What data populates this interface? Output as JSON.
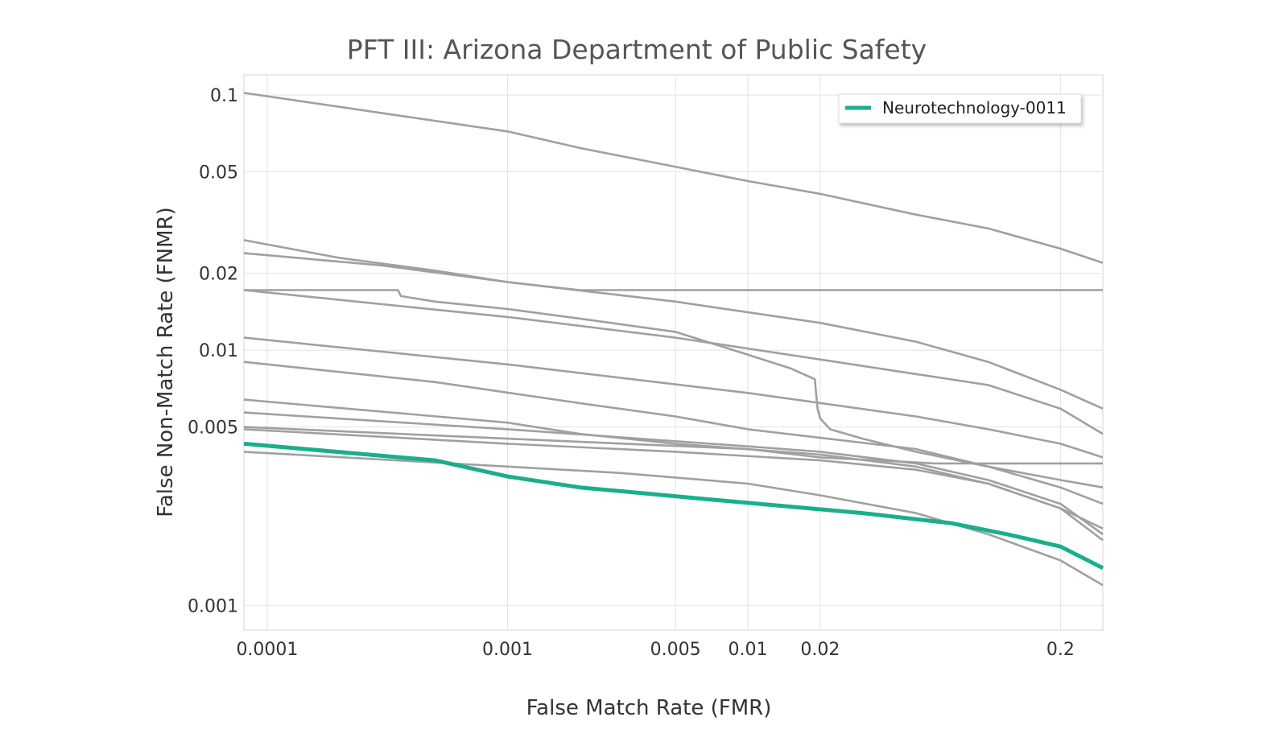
{
  "chart_data": {
    "type": "line",
    "title": "PFT III: Arizona Department of Public Safety",
    "xlabel": "False Match Rate (FMR)",
    "ylabel": "False Non-Match Rate (FNMR)",
    "xscale": "log",
    "yscale": "log",
    "xlim": [
      8e-05,
      0.3
    ],
    "ylim": [
      0.0008,
      0.12
    ],
    "grid": true,
    "legend_position": "top-right",
    "xticks": [
      {
        "value": 0.0001,
        "label": "0.0001"
      },
      {
        "value": 0.001,
        "label": "0.001"
      },
      {
        "value": 0.005,
        "label": "0.005"
      },
      {
        "value": 0.01,
        "label": "0.01"
      },
      {
        "value": 0.02,
        "label": "0.02"
      },
      {
        "value": 0.2,
        "label": "0.2"
      }
    ],
    "yticks": [
      {
        "value": 0.1,
        "label": "0.1"
      },
      {
        "value": 0.05,
        "label": "0.05"
      },
      {
        "value": 0.02,
        "label": "0.02"
      },
      {
        "value": 0.01,
        "label": "0.01"
      },
      {
        "value": 0.005,
        "label": "0.005"
      },
      {
        "value": 0.001,
        "label": "0.001"
      }
    ],
    "highlight_color": "#1aaf8b",
    "other_color": "#a0a0a0",
    "series": [
      {
        "name": "Neurotechnology-0011",
        "highlight": true,
        "x": [
          8e-05,
          0.0005,
          0.001,
          0.002,
          0.007,
          0.03,
          0.07,
          0.12,
          0.2,
          0.3
        ],
        "y": [
          0.0043,
          0.0037,
          0.0032,
          0.0029,
          0.0026,
          0.0023,
          0.0021,
          0.0019,
          0.0017,
          0.0014
        ]
      },
      {
        "name": "",
        "highlight": false,
        "x": [
          8e-05,
          0.001,
          0.002,
          0.01,
          0.02,
          0.05,
          0.1,
          0.2,
          0.3
        ],
        "y": [
          0.102,
          0.072,
          0.062,
          0.046,
          0.041,
          0.034,
          0.03,
          0.025,
          0.022
        ]
      },
      {
        "name": "",
        "highlight": false,
        "x": [
          8e-05,
          0.0002,
          0.0005,
          0.001,
          0.005,
          0.02,
          0.05,
          0.1,
          0.2,
          0.3
        ],
        "y": [
          0.027,
          0.023,
          0.0205,
          0.0185,
          0.0155,
          0.0128,
          0.0108,
          0.009,
          0.007,
          0.0059
        ]
      },
      {
        "name": "",
        "highlight": false,
        "x": [
          8e-05,
          0.0003,
          0.001,
          0.002,
          0.3
        ],
        "y": [
          0.024,
          0.0215,
          0.0185,
          0.0172,
          0.0172
        ]
      },
      {
        "name": "",
        "highlight": false,
        "x": [
          8e-05,
          0.00035,
          0.00036,
          0.0005,
          0.001,
          0.002,
          0.005,
          0.01,
          0.015,
          0.019,
          0.0195,
          0.02,
          0.022,
          0.03,
          0.05,
          0.1,
          0.2,
          0.3
        ],
        "y": [
          0.0172,
          0.0172,
          0.0163,
          0.0155,
          0.0145,
          0.0133,
          0.0118,
          0.0096,
          0.0085,
          0.0077,
          0.0059,
          0.0054,
          0.0049,
          0.0045,
          0.004,
          0.0035,
          0.0031,
          0.0029
        ]
      },
      {
        "name": "",
        "highlight": false,
        "x": [
          8e-05,
          0.001,
          0.005,
          0.02,
          0.1,
          0.2,
          0.3
        ],
        "y": [
          0.0172,
          0.0135,
          0.0112,
          0.0092,
          0.0073,
          0.0059,
          0.0047
        ]
      },
      {
        "name": "",
        "highlight": false,
        "x": [
          8e-05,
          0.001,
          0.01,
          0.05,
          0.1,
          0.2,
          0.3
        ],
        "y": [
          0.0112,
          0.0088,
          0.0068,
          0.0055,
          0.0049,
          0.0043,
          0.0038
        ]
      },
      {
        "name": "",
        "highlight": false,
        "x": [
          8e-05,
          0.0005,
          0.002,
          0.005,
          0.01,
          0.05,
          0.1,
          0.2,
          0.3
        ],
        "y": [
          0.009,
          0.0075,
          0.0062,
          0.0055,
          0.0049,
          0.0041,
          0.0035,
          0.0029,
          0.0025
        ]
      },
      {
        "name": "",
        "highlight": false,
        "x": [
          8e-05,
          0.001,
          0.002,
          0.005,
          0.02,
          0.05,
          0.1,
          0.2,
          0.3
        ],
        "y": [
          0.0064,
          0.0052,
          0.0047,
          0.0043,
          0.0039,
          0.0035,
          0.003,
          0.0024,
          0.002
        ]
      },
      {
        "name": "",
        "highlight": false,
        "x": [
          8e-05,
          0.001,
          0.01,
          0.02,
          0.05,
          0.1,
          0.2,
          0.3
        ],
        "y": [
          0.0057,
          0.0049,
          0.0042,
          0.004,
          0.0036,
          0.0031,
          0.0025,
          0.0019
        ]
      },
      {
        "name": "",
        "highlight": false,
        "x": [
          8e-05,
          0.001,
          0.01,
          0.02,
          0.06,
          0.3
        ],
        "y": [
          0.005,
          0.0045,
          0.0041,
          0.0038,
          0.0036,
          0.0036
        ]
      },
      {
        "name": "",
        "highlight": false,
        "x": [
          8e-05,
          0.001,
          0.005,
          0.02,
          0.05,
          0.1,
          0.2,
          0.3
        ],
        "y": [
          0.0049,
          0.0043,
          0.004,
          0.0037,
          0.0034,
          0.003,
          0.0024,
          0.0018
        ]
      },
      {
        "name": "",
        "highlight": false,
        "x": [
          8e-05,
          0.001,
          0.003,
          0.01,
          0.02,
          0.05,
          0.1,
          0.2,
          0.3
        ],
        "y": [
          0.004,
          0.0035,
          0.0033,
          0.003,
          0.0027,
          0.0023,
          0.0019,
          0.0015,
          0.0012
        ]
      }
    ]
  }
}
